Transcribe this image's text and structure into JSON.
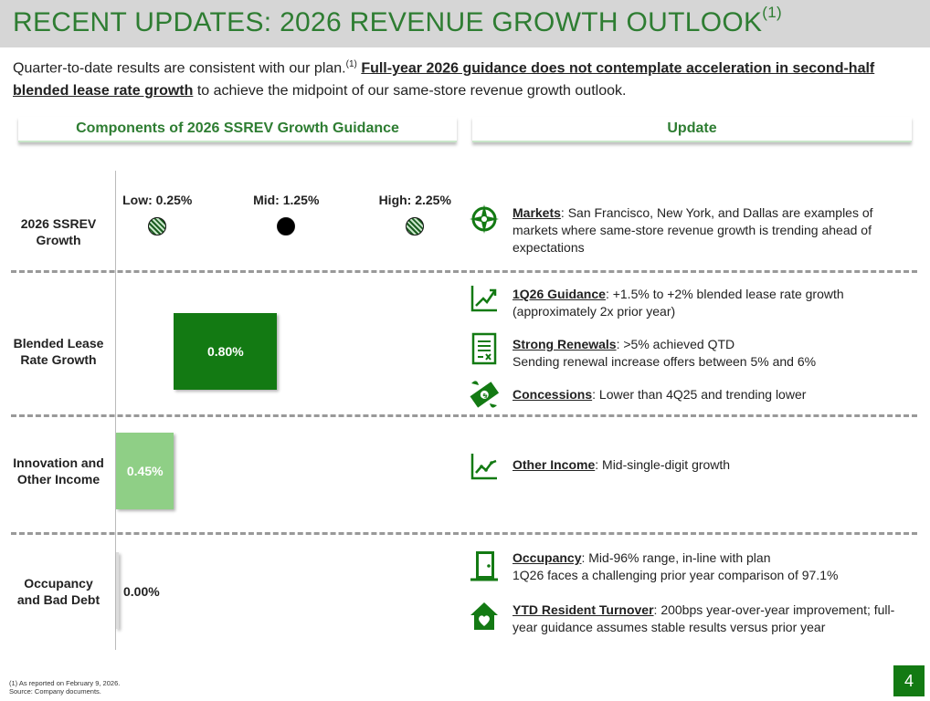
{
  "title": {
    "text": "RECENT UPDATES: 2026 REVENUE GROWTH OUTLOOK",
    "sup": "(1)"
  },
  "subtitle": {
    "part1": "Quarter-to-date results are consistent with our plan.",
    "sup": "(1)",
    "emphasis": "Full-year 2026 guidance does not contemplate acceleration in second-half blended lease rate growth",
    "part2": " to achieve the midpoint of our same-store revenue growth outlook."
  },
  "headers": {
    "left": "Components of 2026 SSREV Growth Guidance",
    "right": "Update"
  },
  "chart_data": {
    "type": "bar",
    "orientation": "horizontal",
    "categories": [
      "2026 SSREV Growth",
      "Blended Lease Rate Growth",
      "Innovation and Other Income",
      "Occupancy and Bad Debt"
    ],
    "category_lines": [
      [
        "2026 SSREV",
        "Growth"
      ],
      [
        "Blended Lease",
        "Rate Growth"
      ],
      [
        "Innovation and",
        "Other Income"
      ],
      [
        "Occupancy",
        "and Bad Debt"
      ]
    ],
    "markers": [
      {
        "name": "Low",
        "label": "Low: 0.25%",
        "value": 0.25,
        "style": "hatched"
      },
      {
        "name": "Mid",
        "label": "Mid: 1.25%",
        "value": 1.25,
        "style": "solid"
      },
      {
        "name": "High",
        "label": "High: 2.25%",
        "value": 2.25,
        "style": "hatched"
      }
    ],
    "bars": [
      {
        "category": "Blended Lease Rate Growth",
        "start": 0.45,
        "value": 0.8,
        "label": "0.80%",
        "color": "#137a13"
      },
      {
        "category": "Innovation and Other Income",
        "start": 0.0,
        "value": 0.45,
        "label": "0.45%",
        "color": "#8fcf86"
      },
      {
        "category": "Occupancy and Bad Debt",
        "start": 0.0,
        "value": 0.0,
        "label": "0.00%",
        "color": "#dddddd"
      }
    ],
    "xlim": [
      0,
      2.5
    ]
  },
  "updates": [
    {
      "icon": "compass-icon",
      "key": "Markets",
      "rest": ": San Francisco, New York, and Dallas are examples of markets where same-store revenue growth is trending ahead of expectations",
      "line2": ""
    },
    {
      "icon": "trend-up-icon",
      "key": "1Q26 Guidance",
      "rest": ": +1.5% to +2% blended lease rate growth (approximately 2x prior year)",
      "line2": ""
    },
    {
      "icon": "document-icon",
      "key": "Strong Renewals",
      "rest": ": >5% achieved QTD",
      "line2": "Sending renewal increase offers between 5% and 6%"
    },
    {
      "icon": "money-icon",
      "key": "Concessions",
      "rest": ": Lower than 4Q25 and trending lower",
      "line2": ""
    },
    {
      "icon": "line-chart-icon",
      "key": "Other Income",
      "rest": ": Mid-single-digit growth",
      "line2": ""
    },
    {
      "icon": "door-icon",
      "key": "Occupancy",
      "rest": ": Mid-96% range, in-line with plan",
      "line2": "1Q26 faces a challenging prior year comparison of 97.1%"
    },
    {
      "icon": "home-heart-icon",
      "key": "YTD Resident Turnover",
      "rest": ": 200bps year-over-year improvement; full-year guidance assumes stable results versus prior year",
      "line2": ""
    }
  ],
  "footnote": {
    "line1": "(1)    As reported on February 9, 2026.",
    "line2": "Source:  Company documents."
  },
  "page_number": "4",
  "colors": {
    "accent": "#2e7d32",
    "dark_bar": "#137a13",
    "light_bar": "#8fcf86",
    "title_bg": "#d6d6d6"
  }
}
